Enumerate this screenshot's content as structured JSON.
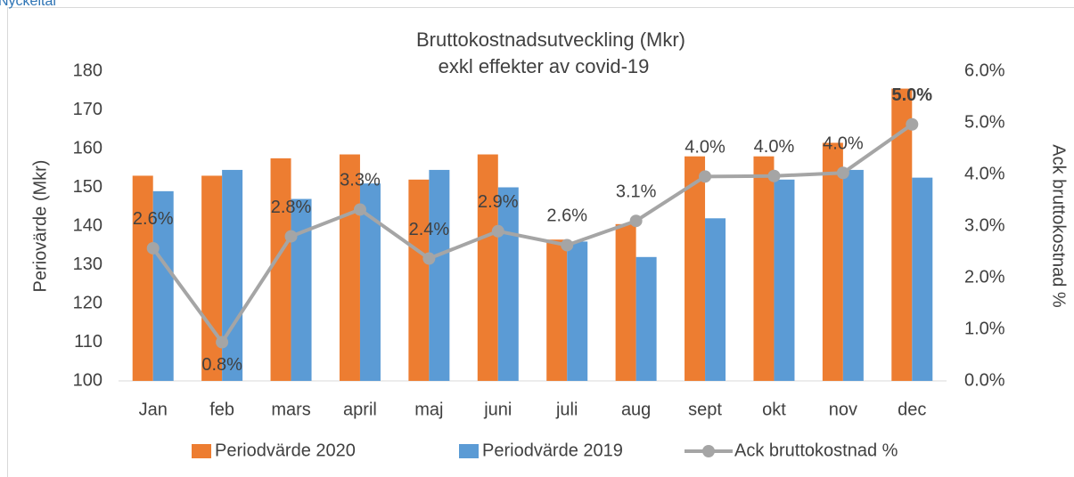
{
  "header": {
    "title": "Nyckeltal"
  },
  "chart_data": {
    "type": "bar-line",
    "title": [
      "Bruttokostnadsutveckling (Mkr)",
      "exkl effekter av covid-19"
    ],
    "ylabel": "Periovärde (Mkr)",
    "y2label": "Ack bruttokostnad %",
    "categories": [
      "Jan",
      "feb",
      "mars",
      "april",
      "maj",
      "juni",
      "juli",
      "aug",
      "sept",
      "okt",
      "nov",
      "dec"
    ],
    "series": [
      {
        "name": "Periodvärde 2020",
        "type": "bar",
        "color": "#ED7D31",
        "values": [
          153,
          153,
          157.5,
          158.5,
          152,
          158.5,
          136.5,
          140.5,
          158,
          158,
          161.5,
          175.5
        ]
      },
      {
        "name": "Periodvärde 2019",
        "type": "bar",
        "color": "#5B9BD5",
        "values": [
          149,
          154.5,
          147,
          151,
          154.5,
          150,
          136,
          132,
          142,
          152,
          154.5,
          152.5
        ]
      },
      {
        "name": "Ack bruttokostnad %",
        "type": "line",
        "axis": "y2",
        "color": "#A5A5A5",
        "values": [
          2.57,
          0.75,
          2.8,
          3.32,
          2.37,
          2.9,
          2.63,
          3.1,
          3.96,
          3.97,
          4.03,
          4.97
        ],
        "value_labels": [
          "2.6%",
          "0.8%",
          "2.8%",
          "3.3%",
          "2.4%",
          "2.9%",
          "2.6%",
          "3.1%",
          "4.0%",
          "4.0%",
          "4.0%",
          "5.0%"
        ]
      }
    ],
    "ylim": [
      100,
      180
    ],
    "yticks": [
      100,
      110,
      120,
      130,
      140,
      150,
      160,
      170,
      180
    ],
    "y2lim": [
      0,
      6
    ],
    "y2ticks": [
      {
        "value": 0,
        "label": "0.0%"
      },
      {
        "value": 1,
        "label": "1.0%"
      },
      {
        "value": 2,
        "label": "2.0%"
      },
      {
        "value": 3,
        "label": "3.0%"
      },
      {
        "value": 4,
        "label": "4.0%"
      },
      {
        "value": 5,
        "label": "5.0%"
      },
      {
        "value": 6,
        "label": "6.0%"
      }
    ],
    "legend": "bottom"
  }
}
